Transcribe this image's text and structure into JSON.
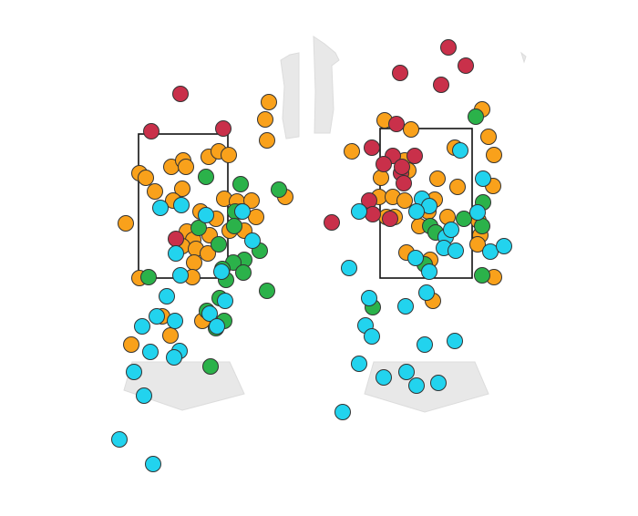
{
  "chart_data": [
    {
      "type": "scatter",
      "xlim": [
        0,
        350
      ],
      "ylim": [
        0,
        566
      ],
      "zone": {
        "x": [
          152,
          250
        ],
        "y": [
          261,
          419
        ]
      },
      "series": [
        {
          "color": "#f9a11b",
          "x": [
            295,
            291,
            293,
            153,
            160,
            170,
            188,
            201,
            204,
            229,
            240,
            251,
            200,
            190,
            246,
            260,
            276,
            281,
            138,
            205,
            220,
            237,
            252,
            268,
            212,
            200,
            215,
            228,
            213,
            153,
            211,
            313,
            178,
            187,
            144,
            222,
            265,
            230
          ],
          "y": [
            454,
            435,
            412,
            376,
            371,
            356,
            383,
            390,
            383,
            394,
            400,
            396,
            359,
            346,
            348,
            345,
            346,
            328,
            321,
            312,
            334,
            326,
            313,
            313,
            303,
            296,
            293,
            288,
            278,
            261,
            262,
            350,
            219,
            198,
            188,
            214,
            334,
            308
          ]
        },
        {
          "color": "#c9304a",
          "x": [
            198,
            166,
            245,
            193
          ],
          "y": [
            463,
            422,
            425,
            304
          ]
        },
        {
          "color": "#2bb24a",
          "x": [
            226,
            264,
            306,
            258,
            218,
            257,
            240,
            285,
            268,
            256,
            244,
            267,
            248,
            293,
            241,
            227,
            246,
            237,
            231,
            163
          ],
          "y": [
            372,
            364,
            358,
            334,
            316,
            318,
            298,
            291,
            281,
            278,
            271,
            267,
            259,
            247,
            239,
            225,
            214,
            206,
            164,
            262
          ]
        },
        {
          "color": "#22d3ee",
          "x": [
            176,
            199,
            266,
            226,
            277,
            193,
            198,
            243,
            183,
            247,
            172,
            192,
            156,
            230,
            238,
            165,
            197,
            191,
            147,
            158,
            131,
            168
          ],
          "y": [
            338,
            341,
            334,
            330,
            302,
            288,
            264,
            268,
            241,
            236,
            219,
            214,
            208,
            222,
            208,
            180,
            181,
            174,
            158,
            132,
            84,
            57
          ]
        }
      ]
    },
    {
      "type": "scatter",
      "xlim": [
        0,
        350
      ],
      "ylim": [
        0,
        566
      ],
      "zone": {
        "x": [
          67,
          168
        ],
        "y": [
          261,
          425
        ]
      },
      "series": [
        {
          "color": "#f9a11b",
          "x": [
            72,
            101,
            179,
            186,
            192,
            36,
            94,
            149,
            68,
            98,
            130,
            152,
            191,
            66,
            81,
            94,
            127,
            120,
            141,
            74,
            83,
            175,
            177,
            174,
            192,
            96,
            122,
            110,
            125
          ],
          "y": [
            434,
            424,
            446,
            416,
            396,
            400,
            390,
            404,
            371,
            379,
            370,
            361,
            362,
            350,
            350,
            346,
            347,
            334,
            328,
            328,
            328,
            324,
            308,
            298,
            262,
            289,
            281,
            318,
            236
          ]
        },
        {
          "color": "#c9304a",
          "x": [
            142,
            161,
            89,
            134,
            85,
            58,
            81,
            105,
            71,
            90,
            93,
            55,
            59,
            78,
            14,
            91
          ],
          "y": [
            514,
            494,
            486,
            473,
            430,
            404,
            395,
            395,
            386,
            376,
            365,
            346,
            331,
            326,
            322,
            383
          ]
        },
        {
          "color": "#2bb24a",
          "x": [
            172,
            180,
            122,
            128,
            159,
            179,
            116,
            179,
            59
          ],
          "y": [
            438,
            344,
            318,
            311,
            326,
            318,
            276,
            264,
            229
          ]
        },
        {
          "color": "#22d3ee",
          "x": [
            155,
            180,
            113,
            121,
            107,
            44,
            174,
            139,
            145,
            137,
            150,
            188,
            203,
            106,
            121,
            33,
            55,
            118,
            95,
            51,
            58,
            116,
            149,
            44,
            71,
            96,
            107,
            131,
            26
          ],
          "y": [
            401,
            370,
            348,
            340,
            334,
            334,
            333,
            306,
            314,
            294,
            291,
            290,
            296,
            283,
            268,
            272,
            239,
            245,
            230,
            209,
            197,
            188,
            192,
            167,
            152,
            158,
            143,
            146,
            114
          ]
        }
      ]
    }
  ]
}
